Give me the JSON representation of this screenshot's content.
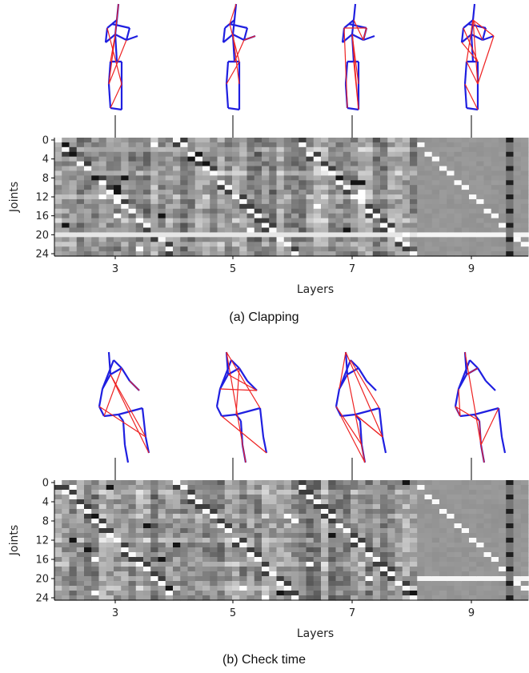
{
  "chart_data": [
    {
      "type": "heatmap",
      "caption": "(a) Clapping",
      "xlabel": "Layers",
      "ylabel": "Joints",
      "x_ticks": [
        "3",
        "5",
        "7",
        "9"
      ],
      "y_ticks": [
        "0",
        "4",
        "8",
        "12",
        "16",
        "20",
        "24"
      ],
      "rows": 25,
      "layers": [
        3,
        5,
        7,
        9
      ],
      "colormap": "gray",
      "grid": false
    },
    {
      "type": "heatmap",
      "caption": "(b) Check time",
      "xlabel": "Layers",
      "ylabel": "Joints",
      "x_ticks": [
        "3",
        "5",
        "7",
        "9"
      ],
      "y_ticks": [
        "0",
        "4",
        "8",
        "12",
        "16",
        "20",
        "24"
      ],
      "rows": 25,
      "layers": [
        3,
        5,
        7,
        9
      ],
      "colormap": "gray",
      "grid": false
    }
  ],
  "colors": {
    "skeleton_bone": "#1f1fe0",
    "attention_link": "#ee2222"
  }
}
